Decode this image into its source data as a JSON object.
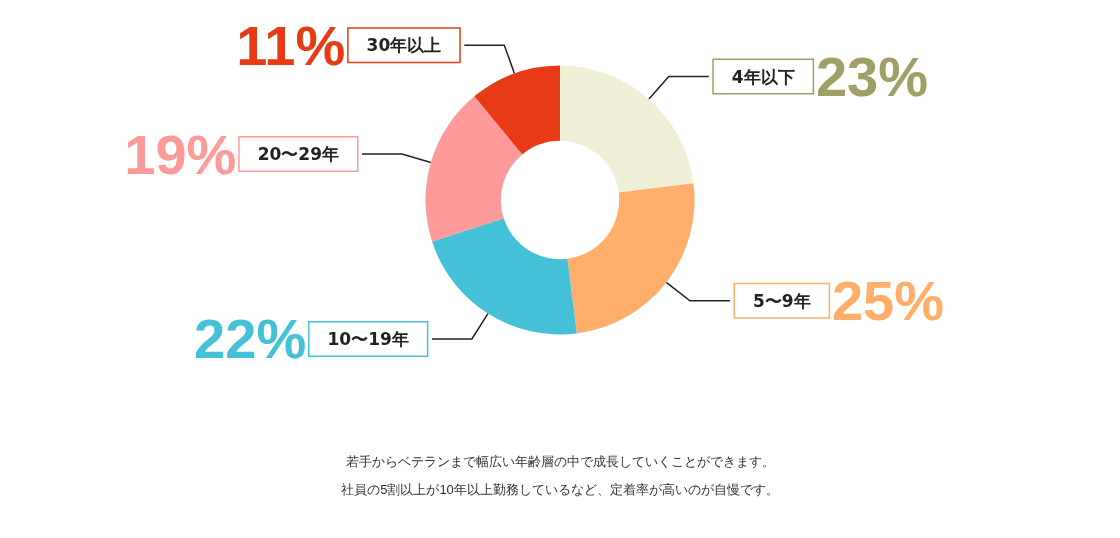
{
  "chart_data": {
    "type": "donut",
    "categories": [
      "4年以下",
      "5〜9年",
      "10〜19年",
      "20〜29年",
      "30年以上"
    ],
    "values": [
      23,
      25,
      22,
      19,
      11
    ],
    "value_labels": [
      "23%",
      "25%",
      "22%",
      "19%",
      "11%"
    ],
    "colors": [
      "#efefd8",
      "#ffae6b",
      "#45c1d7",
      "#ff9a9a",
      "#e83a15"
    ],
    "annotations": [
      "若手からベテランまで幅広い年齢層の中で成長していくことができます。",
      "社員の5割以上が10年以上勤務しているなど、定着率が高いのが自慢です。"
    ]
  }
}
